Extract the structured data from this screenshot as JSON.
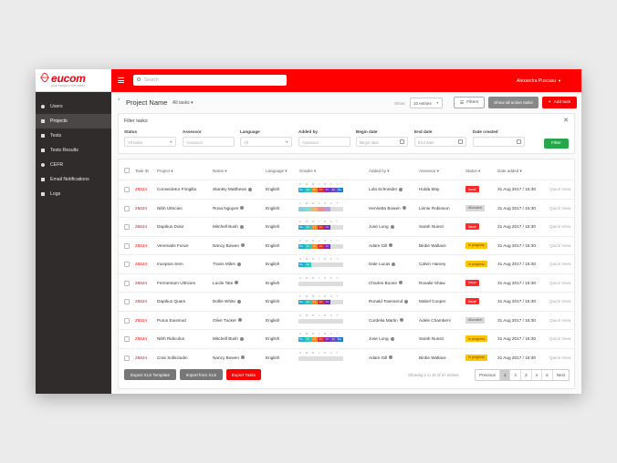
{
  "app": {
    "logo": "eucom",
    "tagline": "your bridge to the world"
  },
  "sidebar": {
    "items": [
      {
        "label": "Users",
        "icon": "user-icon"
      },
      {
        "label": "Projects",
        "icon": "folder-icon"
      },
      {
        "label": "Tests",
        "icon": "document-icon"
      },
      {
        "label": "Tests Results",
        "icon": "results-icon"
      },
      {
        "label": "CEFR",
        "icon": "globe-icon"
      },
      {
        "label": "Email Notifications",
        "icon": "mail-icon"
      },
      {
        "label": "Logs",
        "icon": "log-icon"
      }
    ]
  },
  "topbar": {
    "search_placeholder": "Search",
    "user": "Alexandra Puscasu"
  },
  "header": {
    "project_title": "Project Name",
    "task_filter": "All tasks",
    "show_label": "Show",
    "entries": "10 entries",
    "filters_btn": "Filters",
    "show_all_btn": "Show all active tasks",
    "add_btn": "Add task"
  },
  "filter": {
    "title": "Filter tasks",
    "fields": [
      {
        "label": "Status",
        "placeholder": "All tasks"
      },
      {
        "label": "Assessor",
        "placeholder": "Assessor"
      },
      {
        "label": "Language",
        "placeholder": "All"
      },
      {
        "label": "Added by",
        "placeholder": "Assessor"
      },
      {
        "label": "Begin date",
        "placeholder": "Begin date"
      },
      {
        "label": "End date",
        "placeholder": "End date"
      },
      {
        "label": "Date created",
        "placeholder": ""
      }
    ],
    "apply_btn": "Filter"
  },
  "table": {
    "columns": [
      "Task ID",
      "Project",
      "Name",
      "Language",
      "Grades",
      "Added by",
      "Assessor",
      "Status",
      "Date added"
    ],
    "grade_letters": [
      "O",
      "W",
      "M",
      "L",
      "R",
      "S",
      "T"
    ],
    "rows": [
      {
        "id": "25624",
        "project": "Consectetur Fringilla",
        "name": "Stanley Matthews",
        "lang": "English",
        "added_by": "Lola Schneider",
        "assessor": "Hulda May",
        "status": "Issue",
        "date": "31 Aug 2017 / 15:30",
        "action": "Quick View",
        "grades": [
          {
            "t": "B1+",
            "c": "#20a9d8"
          },
          {
            "t": "A2",
            "c": "#2ec4b6"
          },
          {
            "t": "A1",
            "c": "#f08a1c"
          },
          {
            "t": "C1",
            "c": "#e03131"
          },
          {
            "t": "C1",
            "c": "#7b2cbf"
          },
          {
            "t": "A2",
            "c": "#6a4cc2"
          },
          {
            "t": "B1+",
            "c": "#1c7ed6"
          }
        ]
      },
      {
        "id": "25624",
        "project": "Nibh Ultricies",
        "name": "Rosa Nguyen",
        "lang": "English",
        "added_by": "Henrietta Bowen",
        "assessor": "Linnie Robinson",
        "status": "Allocated",
        "date": "31 Aug 2017 / 15:30",
        "action": "Quick View",
        "grades": [
          {
            "t": "",
            "c": "#7fd0ea"
          },
          {
            "t": "",
            "c": "#8fd8cf"
          },
          {
            "t": "",
            "c": "#f6b46a"
          },
          {
            "t": "",
            "c": "#f08c8c"
          },
          {
            "t": "",
            "c": "#b9a0dd"
          },
          {
            "t": "",
            "c": "#dddddd"
          },
          {
            "t": "",
            "c": "#dddddd"
          }
        ]
      },
      {
        "id": "25624",
        "project": "Dapibus Dolor",
        "name": "Mitchell Bush",
        "lang": "English",
        "added_by": "Jose Long",
        "assessor": "Sarah Nunez",
        "status": "Issue",
        "date": "31 Aug 2017 / 15:30",
        "action": "Quick View",
        "grades": [
          {
            "t": "B1+",
            "c": "#20a9d8"
          },
          {
            "t": "A2",
            "c": "#2ec4b6"
          },
          {
            "t": "A1",
            "c": "#f08a1c"
          },
          {
            "t": "C1",
            "c": "#e03131"
          },
          {
            "t": "C1",
            "c": "#7b2cbf"
          },
          {
            "t": "",
            "c": "#dddddd"
          },
          {
            "t": "",
            "c": "#dddddd"
          }
        ]
      },
      {
        "id": "25624",
        "project": "Venenatis Fusce",
        "name": "Nancy Bowen",
        "lang": "English",
        "added_by": "Adam Gill",
        "assessor": "Birdie Wallace",
        "status": "In progress",
        "date": "31 Aug 2017 / 15:30",
        "action": "Quick View",
        "grades": [
          {
            "t": "B1+",
            "c": "#20a9d8"
          },
          {
            "t": "A2",
            "c": "#2ec4b6"
          },
          {
            "t": "A1",
            "c": "#f08a1c"
          },
          {
            "t": "C1",
            "c": "#e03131"
          },
          {
            "t": "C1",
            "c": "#7b2cbf"
          },
          {
            "t": "",
            "c": "#dddddd"
          },
          {
            "t": "",
            "c": "#dddddd"
          }
        ]
      },
      {
        "id": "25624",
        "project": "Inceptos Sem",
        "name": "Travis Miles",
        "lang": "English",
        "added_by": "Dale Lucas",
        "assessor": "Calvin Harvey",
        "status": "In progress",
        "date": "31 Aug 2017 / 15:30",
        "action": "Quick View",
        "grades": [
          {
            "t": "B1+",
            "c": "#20a9d8"
          },
          {
            "t": "A2",
            "c": "#2ec4b6"
          },
          {
            "t": "",
            "c": "#dddddd"
          },
          {
            "t": "",
            "c": "#dddddd"
          },
          {
            "t": "",
            "c": "#dddddd"
          },
          {
            "t": "",
            "c": "#dddddd"
          },
          {
            "t": "",
            "c": "#dddddd"
          }
        ]
      },
      {
        "id": "25624",
        "project": "Fermentum Ultricies",
        "name": "Lucile Tate",
        "lang": "English",
        "added_by": "Charles Boone",
        "assessor": "Rosalie Shaw",
        "status": "Issue",
        "date": "31 Aug 2017 / 15:30",
        "action": "Quick View",
        "grades": [
          {
            "t": "",
            "c": "#dddddd"
          },
          {
            "t": "",
            "c": "#dddddd"
          },
          {
            "t": "",
            "c": "#dddddd"
          },
          {
            "t": "",
            "c": "#dddddd"
          },
          {
            "t": "",
            "c": "#dddddd"
          },
          {
            "t": "",
            "c": "#dddddd"
          },
          {
            "t": "",
            "c": "#dddddd"
          }
        ]
      },
      {
        "id": "25624",
        "project": "Dapibus Quam",
        "name": "Dollie White",
        "lang": "English",
        "added_by": "Ronald Townsend",
        "assessor": "Mabel Cooper",
        "status": "Issue",
        "date": "31 Aug 2017 / 15:30",
        "action": "Quick View",
        "grades": [
          {
            "t": "B1+",
            "c": "#20a9d8"
          },
          {
            "t": "A2",
            "c": "#2ec4b6"
          },
          {
            "t": "A1",
            "c": "#f08a1c"
          },
          {
            "t": "C1",
            "c": "#e03131"
          },
          {
            "t": "C1",
            "c": "#7b2cbf"
          },
          {
            "t": "",
            "c": "#dddddd"
          },
          {
            "t": "",
            "c": "#dddddd"
          }
        ]
      },
      {
        "id": "25624",
        "project": "Purus Euismod",
        "name": "Olive Tucker",
        "lang": "English",
        "added_by": "Cordelia Martin",
        "assessor": "Adele Chambers",
        "status": "Allocated",
        "date": "31 Aug 2017 / 15:30",
        "action": "Quick View",
        "grades": [
          {
            "t": "",
            "c": "#dddddd"
          },
          {
            "t": "",
            "c": "#dddddd"
          },
          {
            "t": "",
            "c": "#dddddd"
          },
          {
            "t": "",
            "c": "#dddddd"
          },
          {
            "t": "",
            "c": "#dddddd"
          },
          {
            "t": "",
            "c": "#dddddd"
          },
          {
            "t": "",
            "c": "#dddddd"
          }
        ]
      },
      {
        "id": "25624",
        "project": "Nibh Ridiculus",
        "name": "Mitchell Bush",
        "lang": "English",
        "added_by": "Jose Long",
        "assessor": "Sarah Nunez",
        "status": "In progress",
        "date": "31 Aug 2017 / 15:30",
        "action": "Quick View",
        "grades": [
          {
            "t": "B1+",
            "c": "#20a9d8"
          },
          {
            "t": "A2",
            "c": "#2ec4b6"
          },
          {
            "t": "A1",
            "c": "#f08a1c"
          },
          {
            "t": "C1",
            "c": "#e03131"
          },
          {
            "t": "C1",
            "c": "#7b2cbf"
          },
          {
            "t": "A2",
            "c": "#6a4cc2"
          },
          {
            "t": "B1+",
            "c": "#1c7ed6"
          }
        ]
      },
      {
        "id": "25624",
        "project": "Cras Sollicitudin",
        "name": "Nancy Bowen",
        "lang": "English",
        "added_by": "Adam Gill",
        "assessor": "Birdie Wallace",
        "status": "In progress",
        "date": "31 Aug 2017 / 15:30",
        "action": "Quick View",
        "grades": [
          {
            "t": "",
            "c": "#dddddd"
          },
          {
            "t": "",
            "c": "#dddddd"
          },
          {
            "t": "",
            "c": "#dddddd"
          },
          {
            "t": "",
            "c": "#dddddd"
          },
          {
            "t": "",
            "c": "#dddddd"
          },
          {
            "t": "",
            "c": "#dddddd"
          },
          {
            "t": "",
            "c": "#dddddd"
          }
        ]
      }
    ]
  },
  "status_colors": {
    "Issue": {
      "bg": "#ff2a2a",
      "fg": "#ffffff"
    },
    "Allocated": {
      "bg": "#d9d9d9",
      "fg": "#555555"
    },
    "In progress": {
      "bg": "#ffc400",
      "fg": "#5a4500"
    }
  },
  "footer": {
    "export_template": "Export XLS Template",
    "import": "Import from XLS",
    "export_tasks": "Export Tasks",
    "showing": "Showing 1 to 10 of 57 entries",
    "pages": [
      "Previous",
      "1",
      "2",
      "3",
      "4",
      "5",
      "Next"
    ],
    "active_page": "1"
  }
}
